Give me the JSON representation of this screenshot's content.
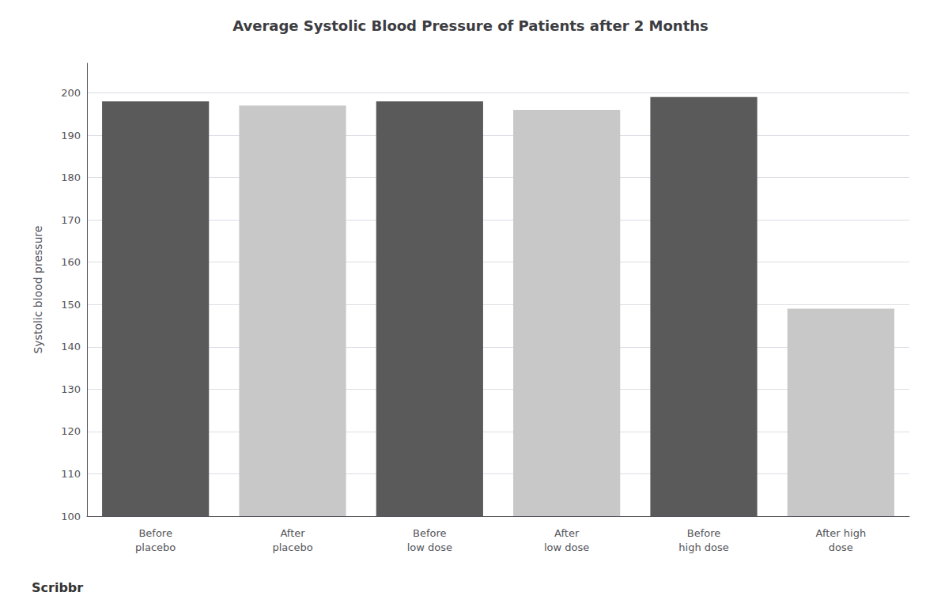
{
  "chart_data": {
    "type": "bar",
    "title": "Average Systolic Blood Pressure of Patients after 2 Months",
    "ylabel": "Systolic blood pressure",
    "categories": [
      "Before\nplacebo",
      "After\nplacebo",
      "Before\nlow dose",
      "After\nlow dose",
      "Before\nhigh dose",
      "After high\ndose"
    ],
    "values": [
      198,
      197,
      198,
      196,
      199,
      149
    ],
    "colors": [
      "#5a5a5a",
      "#c8c8c8",
      "#5a5a5a",
      "#c8c8c8",
      "#5a5a5a",
      "#c8c8c8"
    ],
    "ylim": [
      100,
      207
    ],
    "yticks": [
      100,
      110,
      120,
      130,
      140,
      150,
      160,
      170,
      180,
      190,
      200
    ],
    "grid": true,
    "annotations": [
      "Scribbr"
    ]
  }
}
